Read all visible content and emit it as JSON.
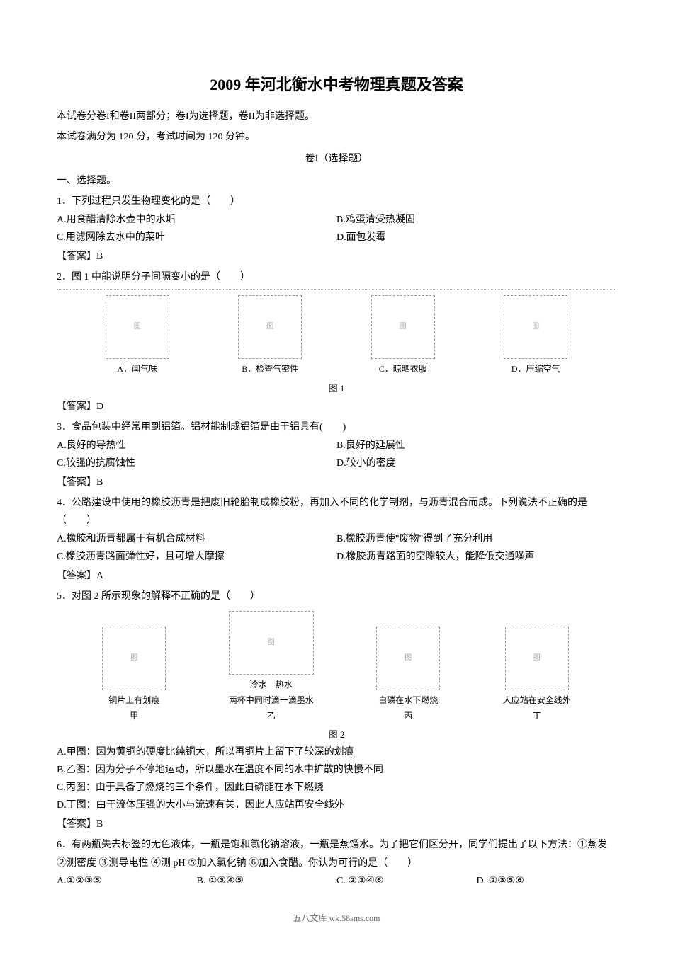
{
  "title": "2009 年河北衡水中考物理真题及答案",
  "intro": {
    "line1": "本试卷分卷I和卷II两部分；卷I为选择题，卷II为非选择题。",
    "line2": "本试卷满分为 120 分，考试时间为 120 分钟。"
  },
  "section_label": "卷I（选择题）",
  "section_heading": "一、选择题。",
  "q1": {
    "stem": "1．下列过程只发生物理变化的是（　　）",
    "optA": "A.用食醋清除水壶中的水垢",
    "optB": "B.鸡蛋清受热凝固",
    "optC": "C.用滤网除去水中的菜叶",
    "optD": "D.面包发霉",
    "answer": "【答案】B"
  },
  "q2": {
    "stem": "2．图 1 中能说明分子间隔变小的是（　　）",
    "figcapA": "A．闻气味",
    "figcapB": "B．检查气密性",
    "figcapC": "C．晾晒衣服",
    "figcapD": "D．压缩空气",
    "figcenter": "图 1",
    "answer": "【答案】D"
  },
  "q3": {
    "stem": "3．食品包装中经常用到铝箔。铝材能制成铝箔是由于铝具有(　　)",
    "optA": "A.良好的导热性",
    "optB": "B.良好的延展性",
    "optC": "C.较强的抗腐蚀性",
    "optD": "D.较小的密度",
    "answer": "【答案】B"
  },
  "q4": {
    "stem": "4．公路建设中使用的橡胶沥青是把废旧轮胎制成橡胶粉，再加入不同的化学制剂，与沥青混合而成。下列说法不正确的是（　　）",
    "optA": "A.橡胶和沥青都属于有机合成材料",
    "optB": "B.橡胶沥青使\"废物\"得到了充分利用",
    "optC": "C.橡胶沥青路面弹性好，且可增大摩擦",
    "optD": "D.橡胶沥青路面的空隙较大，能降低交通噪声",
    "answer": "【答案】A"
  },
  "q5": {
    "stem": "5．对图 2 所示现象的解释不正确的是（　　）",
    "figcap1": "铜片上有划痕",
    "figcap1b": "甲",
    "figcap2": "冷水　热水",
    "figcap2b": "两杯中同时滴一滴墨水",
    "figcap2c": "乙",
    "figcap3": "白磷在水下燃烧",
    "figcap3b": "丙",
    "figcap4": "人应站在安全线外",
    "figcap4b": "丁",
    "figcenter": "图 2",
    "optA": "A.甲图：因为黄铜的硬度比纯铜大，所以再铜片上留下了较深的划痕",
    "optB": "B.乙图：因为分子不停地运动，所以墨水在温度不同的水中扩散的快慢不同",
    "optC": "C.丙图：由于具备了燃烧的三个条件，因此白磷能在水下燃烧",
    "optD": "D.丁图：由于流体压强的大小与流速有关，因此人应站再安全线外",
    "answer": "【答案】B"
  },
  "q6": {
    "stem": "6．有两瓶失去标签的无色液体，一瓶是饱和氯化钠溶液，一瓶是蒸馏水。为了把它们区分开，同学们提出了以下方法：①蒸发 ②测密度 ③测导电性 ④测 pH ⑤加入氯化钠 ⑥加入食醋。你认为可行的是（　　）",
    "optA": "A.①②③⑤",
    "optB": "B. ①③④⑤",
    "optC": "C. ②③④⑥",
    "optD": "D. ②③⑤⑥"
  },
  "footer": "五八文库 wk.58sms.com",
  "placeholders": {
    "img": "图"
  },
  "style": {
    "title_fontsize": 22,
    "body_fontsize": 14,
    "caption_fontsize": 12,
    "footer_fontsize": 12,
    "text_color": "#000000",
    "footer_color": "#666666",
    "background_color": "#ffffff",
    "figbox_border": "#999999"
  }
}
